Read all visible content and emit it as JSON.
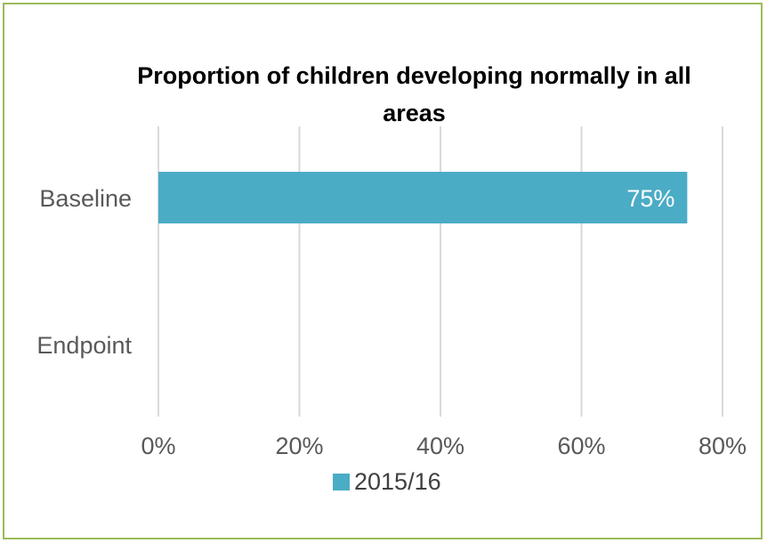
{
  "chart_data": {
    "type": "bar",
    "orientation": "horizontal",
    "title": "Proportion of children developing normally in all areas",
    "categories": [
      "Baseline",
      "Endpoint"
    ],
    "series": [
      {
        "name": "2015/16",
        "values": [
          0.75,
          null
        ],
        "color": "#4BACC6",
        "data_labels": [
          "75%",
          ""
        ]
      }
    ],
    "xlim": [
      0,
      0.8
    ],
    "x_ticks": [
      0,
      0.2,
      0.4,
      0.6,
      0.8
    ],
    "x_tick_labels": [
      "0%",
      "20%",
      "40%",
      "60%",
      "80%"
    ],
    "grid": true,
    "legend_position": "bottom",
    "frame_color": "#9BBB59",
    "gridline_color": "#D9D9D9",
    "text_color": "#595959"
  }
}
